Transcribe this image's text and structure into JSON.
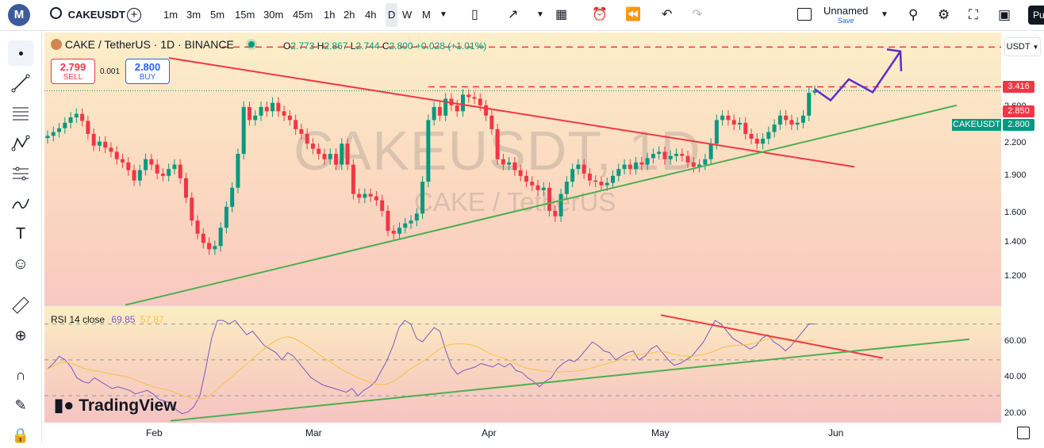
{
  "toolbar": {
    "logo": "M",
    "symbol": "CAKEUSDT",
    "intervals": [
      "1m",
      "3m",
      "5m",
      "15m",
      "30m",
      "45m",
      "1h",
      "2h",
      "4h",
      "D",
      "W",
      "M"
    ],
    "active_interval": "D",
    "layout_name": "Unnamed",
    "layout_save": "Save",
    "right_clip": "Pu"
  },
  "legend": {
    "title": "CAKE / TetherUS · 1D · BINANCE",
    "o_label": "O",
    "o": "2.773",
    "h_label": "H",
    "h": "2.867",
    "l_label": "L",
    "l": "2.744",
    "c_label": "C",
    "c": "2.800",
    "change": "+0.028 (+1.01%)"
  },
  "trade": {
    "sell_price": "2.799",
    "sell_label": "SELL",
    "spread": "0.001",
    "buy_price": "2.800",
    "buy_label": "BUY"
  },
  "currency_button": "USDT",
  "watermark": {
    "line1": "CAKEUSDT, 1D",
    "line2": "CAKE / TetherUS"
  },
  "brand": "TradingView",
  "price_tags": {
    "upper_level": "3.416",
    "mid_level": "2.850",
    "last": "2.800",
    "symbol_tag": "CAKEUSDT"
  },
  "rsi_legend": {
    "label": "RSI 14 close",
    "rsi": "69.85",
    "ma": "57.87"
  },
  "colors": {
    "up": "#089981",
    "down": "#f23645",
    "trendline_red": "#f23645",
    "trendline_green": "#4caf50",
    "rsi_line": "#7e57c2",
    "rsi_ma": "#f5c343",
    "projection": "#5b2fc9",
    "dashed": "#f23645"
  },
  "chart_data": {
    "type": "candlestick",
    "timeframe": "1D",
    "y_scale": "log",
    "x_ticks": [
      "Feb",
      "Mar",
      "Apr",
      "May",
      "Jun"
    ],
    "y_ticks": [
      1.2,
      1.4,
      1.6,
      1.9,
      2.2,
      2.6
    ],
    "ylim": [
      1.05,
      3.65
    ],
    "last_ohlc": {
      "open": 2.773,
      "high": 2.867,
      "low": 2.744,
      "close": 2.8
    },
    "closes": [
      2.28,
      2.32,
      2.36,
      2.42,
      2.48,
      2.52,
      2.44,
      2.3,
      2.18,
      2.22,
      2.16,
      2.12,
      2.05,
      2.02,
      1.95,
      1.86,
      1.95,
      2.05,
      2.0,
      1.92,
      1.9,
      1.96,
      2.0,
      1.88,
      1.72,
      1.55,
      1.46,
      1.4,
      1.36,
      1.38,
      1.5,
      1.65,
      1.8,
      2.1,
      2.6,
      2.45,
      2.5,
      2.6,
      2.55,
      2.65,
      2.55,
      2.5,
      2.45,
      2.35,
      2.3,
      2.2,
      2.15,
      2.1,
      2.05,
      2.1,
      2.0,
      2.2,
      2.0,
      1.75,
      1.72,
      1.75,
      1.73,
      1.7,
      1.62,
      1.48,
      1.46,
      1.5,
      1.53,
      1.55,
      1.6,
      1.85,
      2.45,
      2.6,
      2.5,
      2.7,
      2.62,
      2.55,
      2.75,
      2.72,
      2.7,
      2.62,
      2.5,
      2.35,
      2.05,
      2.0,
      2.02,
      1.95,
      1.9,
      1.85,
      1.82,
      1.78,
      1.8,
      1.62,
      1.58,
      1.75,
      1.85,
      1.96,
      2.0,
      1.92,
      1.86,
      1.85,
      1.82,
      1.84,
      1.9,
      1.96,
      2.0,
      1.96,
      2.02,
      2.0,
      2.06,
      2.1,
      2.12,
      2.05,
      2.08,
      2.1,
      2.08,
      2.02,
      1.98,
      2.0,
      2.05,
      2.2,
      2.45,
      2.5,
      2.45,
      2.4,
      2.42,
      2.3,
      2.25,
      2.2,
      2.25,
      2.32,
      2.4,
      2.5,
      2.45,
      2.4,
      2.42,
      2.5,
      2.773,
      2.8
    ],
    "horizontal_levels": [
      3.416,
      2.85
    ],
    "rsi": {
      "length": 14,
      "source": "close",
      "last": 69.85,
      "ma_last": 57.87,
      "y_ticks": [
        20,
        40,
        60
      ],
      "bands": [
        30,
        50,
        70
      ],
      "ylim": [
        15,
        80
      ],
      "values": [
        45,
        48,
        52,
        50,
        46,
        40,
        38,
        37,
        40,
        38,
        36,
        34,
        35,
        34,
        33,
        31,
        32,
        33,
        31,
        28,
        27,
        26,
        22,
        20,
        21,
        24,
        30,
        45,
        62,
        72,
        72,
        70,
        72,
        68,
        64,
        66,
        62,
        58,
        56,
        54,
        50,
        54,
        52,
        48,
        44,
        40,
        38,
        36,
        35,
        34,
        33,
        32,
        34,
        30,
        33,
        35,
        38,
        44,
        50,
        58,
        68,
        72,
        70,
        62,
        60,
        64,
        68,
        66,
        55,
        46,
        42,
        44,
        45,
        46,
        48,
        47,
        46,
        48,
        46,
        48,
        44,
        43,
        40,
        38,
        35,
        38,
        40,
        45,
        48,
        50,
        49,
        52,
        56,
        60,
        58,
        55,
        54,
        50,
        52,
        54,
        55,
        50,
        52,
        56,
        58,
        54,
        50,
        47,
        48,
        50,
        52,
        56,
        60,
        66,
        72,
        70,
        66,
        62,
        60,
        58,
        56,
        58,
        62,
        64,
        60,
        58,
        55,
        58,
        62,
        66,
        70,
        70
      ]
    }
  }
}
